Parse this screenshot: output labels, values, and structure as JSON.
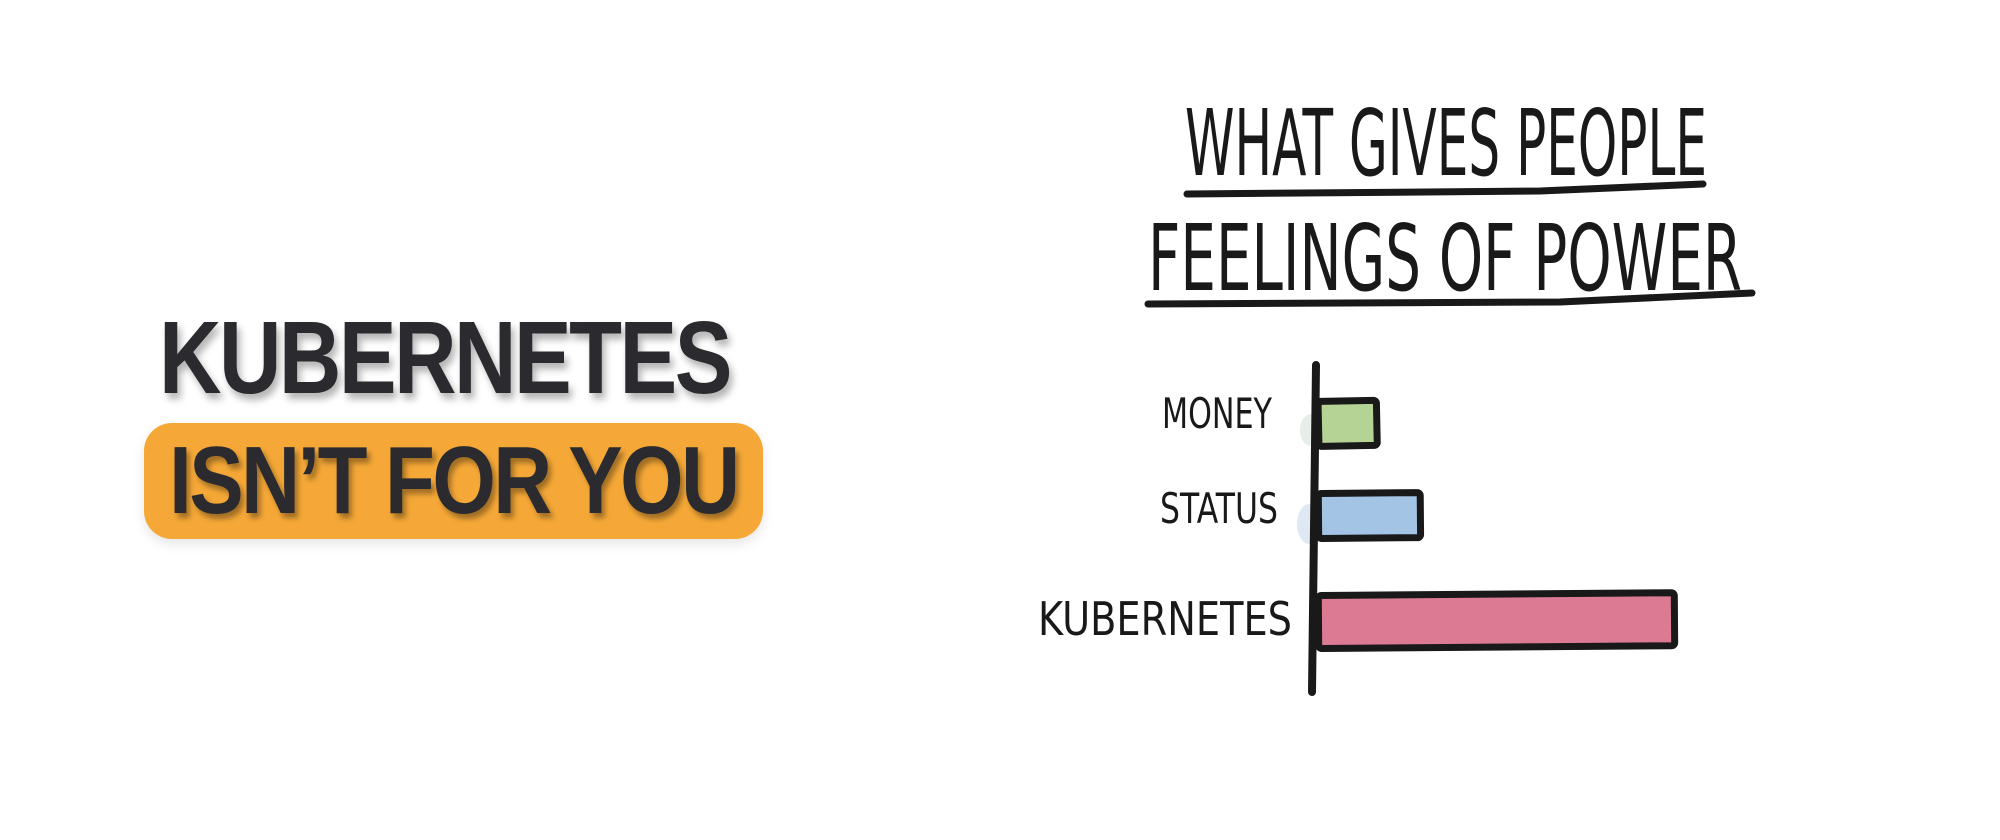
{
  "page": {
    "background": "#FFFFFF"
  },
  "left_panel": {
    "line1": "KUBERNETES",
    "line2": "ISN’T FOR YOU",
    "text_color": "#2B2B2F",
    "highlight_color": "#F5A837"
  },
  "chart_data": {
    "type": "bar",
    "orientation": "horizontal",
    "style": "hand-drawn (xkcd-like sketch)",
    "title_lines": [
      "WHAT GIVES PEOPLE",
      "FEELINGS OF POWER"
    ],
    "title_underlined": true,
    "categories": [
      "MONEY",
      "STATUS",
      "KUBERNETES"
    ],
    "values": [
      18,
      30,
      100
    ],
    "value_units": "percent of longest bar (no numeric axis shown)",
    "bar_colors": [
      "#B4D394",
      "#A3C4E4",
      "#DC7A94"
    ],
    "outline_color": "#191919",
    "axis_color": "#191919",
    "x_axis_visible": false,
    "y_axis_visible": true,
    "grid": false,
    "legend": "none",
    "data_labels": "none"
  }
}
